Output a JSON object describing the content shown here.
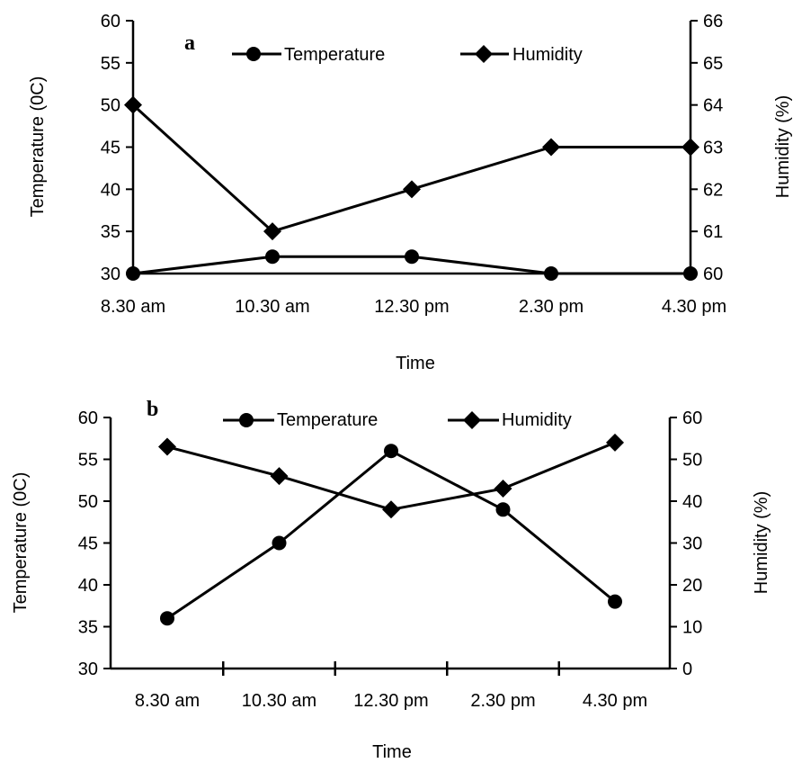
{
  "chart_data": [
    {
      "type": "line",
      "panel_label": "a",
      "categories": [
        "8.30 am",
        "10.30 am",
        "12.30 pm",
        "2.30 pm",
        "4.30 pm"
      ],
      "series": [
        {
          "name": "Temperature",
          "axis": "left",
          "marker": "circle",
          "values": [
            30,
            32,
            32,
            30,
            30
          ]
        },
        {
          "name": "Humidity",
          "axis": "right",
          "marker": "diamond",
          "values": [
            64,
            61,
            62,
            63,
            63
          ]
        }
      ],
      "xlabel": "Time",
      "ylabel": "Temperature (0C)",
      "y2label": "Humidity (%)",
      "ylim": [
        30,
        60
      ],
      "y2lim": [
        60,
        66
      ],
      "yticks": [
        "30",
        "35",
        "40",
        "45",
        "50",
        "55",
        "60"
      ],
      "y2ticks": [
        "60",
        "61",
        "62",
        "63",
        "64",
        "65",
        "66"
      ],
      "legend": "top-center",
      "grid": false
    },
    {
      "type": "line",
      "panel_label": "b",
      "categories": [
        "8.30 am",
        "10.30 am",
        "12.30 pm",
        "2.30 pm",
        "4.30 pm"
      ],
      "series": [
        {
          "name": "Temperature",
          "axis": "left",
          "marker": "circle",
          "values": [
            36,
            45,
            56,
            49,
            38
          ]
        },
        {
          "name": "Humidity",
          "axis": "right",
          "marker": "diamond",
          "values": [
            53,
            46,
            38,
            43,
            54
          ]
        }
      ],
      "xlabel": "Time",
      "ylabel": "Temperature (0C)",
      "y2label": "Humidity (%)",
      "ylim": [
        30,
        60
      ],
      "y2lim": [
        0,
        60
      ],
      "yticks": [
        "30",
        "35",
        "40",
        "45",
        "50",
        "55",
        "60"
      ],
      "y2ticks": [
        "0",
        "10",
        "20",
        "30",
        "40",
        "50",
        "60"
      ],
      "legend": "top-center",
      "grid": false
    }
  ]
}
